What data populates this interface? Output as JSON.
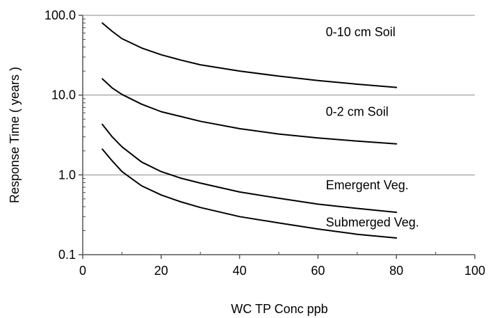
{
  "chart_data": {
    "type": "line",
    "title": "",
    "xlabel": "WC  TP Conc ppb",
    "ylabel": "Response Time  ( years )",
    "xlim": [
      0,
      100
    ],
    "ylim": [
      0.1,
      100
    ],
    "yscale": "log",
    "x_ticks": [
      0,
      20,
      40,
      60,
      80,
      100
    ],
    "x_tick_labels": [
      "0",
      "20",
      "40",
      "60",
      "80",
      "100"
    ],
    "y_ticks": [
      0.1,
      1,
      10,
      100
    ],
    "y_tick_labels": [
      "0.1",
      "1.0",
      "10.0",
      "100.0"
    ],
    "grid": "horizontal major lines",
    "legend": "none",
    "line_color": "#000000",
    "series": [
      {
        "name": "0-10 cm Soil",
        "x": [
          5,
          7.5,
          10,
          15,
          20,
          25,
          30,
          40,
          50,
          60,
          70,
          80
        ],
        "y": [
          80,
          63,
          51,
          39,
          32,
          27.5,
          24,
          20,
          17.3,
          15.2,
          13.7,
          12.5
        ]
      },
      {
        "name": "0-2 cm Soil",
        "x": [
          5,
          7.5,
          10,
          15,
          20,
          25,
          30,
          40,
          50,
          60,
          70,
          80
        ],
        "y": [
          16,
          12.3,
          10.2,
          7.7,
          6.2,
          5.4,
          4.7,
          3.8,
          3.25,
          2.9,
          2.65,
          2.45
        ]
      },
      {
        "name": "Emergent Veg.",
        "x": [
          5,
          7.5,
          10,
          15,
          20,
          25,
          30,
          40,
          50,
          60,
          70,
          80
        ],
        "y": [
          4.3,
          3.0,
          2.25,
          1.45,
          1.1,
          0.91,
          0.79,
          0.61,
          0.51,
          0.43,
          0.38,
          0.34
        ]
      },
      {
        "name": "Submerged Veg.",
        "x": [
          5,
          7.5,
          10,
          15,
          20,
          25,
          30,
          40,
          50,
          60,
          70,
          80
        ],
        "y": [
          2.1,
          1.5,
          1.1,
          0.73,
          0.56,
          0.46,
          0.39,
          0.3,
          0.25,
          0.21,
          0.18,
          0.162
        ]
      }
    ],
    "annotations": [
      {
        "text": "0-10 cm Soil",
        "x": 62,
        "y": 55
      },
      {
        "text": "0-2 cm Soil",
        "x": 62,
        "y": 5.5
      },
      {
        "text": "Emergent Veg.",
        "x": 62,
        "y": 0.66
      },
      {
        "text": "Submerged Veg.",
        "x": 62,
        "y": 0.225
      }
    ]
  }
}
